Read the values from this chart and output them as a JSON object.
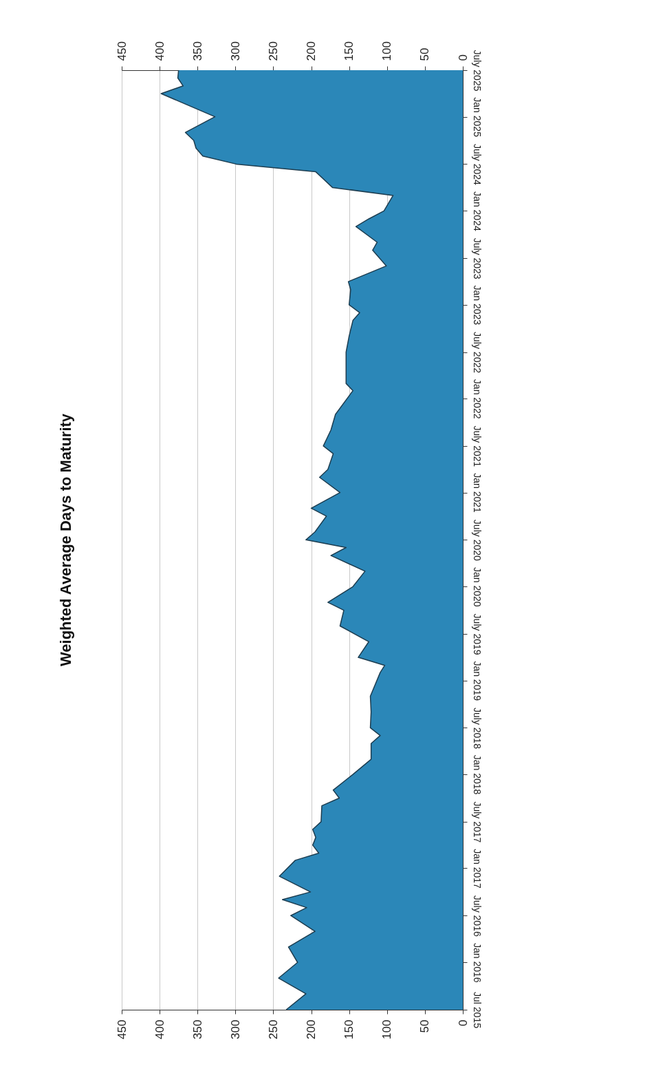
{
  "chart_data": {
    "type": "area",
    "title": "Weighted Average Days to Maturity",
    "orientation": "horizontal",
    "x": [
      "2015-07",
      "2015-09",
      "2015-11",
      "2016-01",
      "2016-03",
      "2016-05",
      "2016-07",
      "2016-08",
      "2016-09",
      "2016-10",
      "2016-12",
      "2017-02",
      "2017-03",
      "2017-04",
      "2017-05",
      "2017-06",
      "2017-07",
      "2017-09",
      "2017-10",
      "2017-11",
      "2018-01",
      "2018-03",
      "2018-05",
      "2018-06",
      "2018-07",
      "2018-09",
      "2018-11",
      "2019-02",
      "2019-03",
      "2019-04",
      "2019-06",
      "2019-08",
      "2019-10",
      "2019-11",
      "2020-01",
      "2020-03",
      "2020-05",
      "2020-06",
      "2020-07",
      "2020-08",
      "2020-10",
      "2020-11",
      "2021-01",
      "2021-03",
      "2021-04",
      "2021-06",
      "2021-07",
      "2021-09",
      "2021-11",
      "2022-02",
      "2022-03",
      "2022-07",
      "2022-09",
      "2022-11",
      "2022-12",
      "2023-01",
      "2023-03",
      "2023-04",
      "2023-06",
      "2023-08",
      "2023-09",
      "2023-11",
      "2023-12",
      "2024-01",
      "2024-03",
      "2024-04",
      "2024-06",
      "2024-07",
      "2024-08",
      "2024-09",
      "2024-10",
      "2024-11",
      "2025-01",
      "2025-04",
      "2025-05",
      "2025-06",
      "2025-07"
    ],
    "series": [
      {
        "color": "#2b87b8",
        "values": [
          233,
          207,
          243,
          218,
          230,
          195,
          227,
          206,
          238,
          201,
          242,
          221,
          190,
          198,
          194,
          198,
          187,
          186,
          163,
          171,
          145,
          121,
          121,
          109,
          122,
          121,
          122,
          109,
          103,
          138,
          124,
          162,
          157,
          178,
          145,
          129,
          174,
          154,
          207,
          195,
          180,
          200,
          162,
          189,
          178,
          171,
          184,
          174,
          168,
          145,
          154,
          154,
          150,
          145,
          136,
          150,
          148,
          151,
          101,
          119,
          113,
          141,
          124,
          104,
          92,
          172,
          194,
          299,
          343,
          352,
          355,
          366,
          327,
          398,
          369,
          376,
          375
        ]
      }
    ],
    "ylim": [
      "2015-07",
      "2025-07"
    ],
    "yticks": [
      {
        "value": "2015-07",
        "label": "Jul 2015"
      },
      {
        "value": "2016-01",
        "label": "Jan 2016"
      },
      {
        "value": "2016-07",
        "label": "July 2016"
      },
      {
        "value": "2017-01",
        "label": "Jan 2017"
      },
      {
        "value": "2017-07",
        "label": "July 2017"
      },
      {
        "value": "2018-01",
        "label": "Jan 2018"
      },
      {
        "value": "2018-07",
        "label": "July 2018"
      },
      {
        "value": "2019-01",
        "label": "Jan 2019"
      },
      {
        "value": "2019-07",
        "label": "July 2019"
      },
      {
        "value": "2020-01",
        "label": "Jan 2020"
      },
      {
        "value": "2020-07",
        "label": "July 2020"
      },
      {
        "value": "2021-01",
        "label": "Jan 2021"
      },
      {
        "value": "2021-07",
        "label": "July 2021"
      },
      {
        "value": "2022-01",
        "label": "Jan 2022"
      },
      {
        "value": "2022-07",
        "label": "July 2022"
      },
      {
        "value": "2023-01",
        "label": "Jan 2023"
      },
      {
        "value": "2023-07",
        "label": "July 2023"
      },
      {
        "value": "2024-01",
        "label": "Jan 2024"
      },
      {
        "value": "2024-07",
        "label": "July 2024"
      },
      {
        "value": "2025-01",
        "label": "Jan 2025"
      },
      {
        "value": "2025-07",
        "label": "July 2025"
      }
    ],
    "xlim": [
      450,
      0
    ],
    "xticks": [
      0,
      50,
      100,
      150,
      200,
      250,
      300,
      350,
      400,
      450
    ],
    "x2lim": [
      450,
      0
    ],
    "x2ticks": [
      0,
      50,
      100,
      150,
      200,
      250,
      300,
      350,
      400,
      450
    ],
    "grid": "x"
  }
}
